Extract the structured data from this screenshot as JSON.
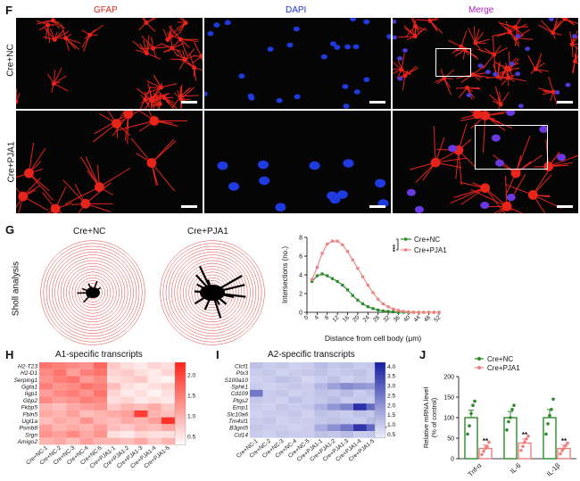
{
  "panelF": {
    "letter": "F",
    "columns": [
      "GFAP",
      "DAPI",
      "Merge"
    ],
    "column_colors": [
      "#e0251c",
      "#1d2fd1",
      "#b21fb7"
    ],
    "rows": [
      "Cre+NC",
      "Cre+PJA1"
    ]
  },
  "panelG": {
    "letter": "G",
    "side_label": "Sholl analysis",
    "cell_titles": [
      "Cre+NC",
      "Cre+PJA1"
    ]
  },
  "panelH": {
    "letter": "H",
    "title": "A1-specific transcripts"
  },
  "panelI": {
    "letter": "I",
    "title": "A2-specific transcripts"
  },
  "panelJ": {
    "letter": "J"
  },
  "chart_data": [
    {
      "type": "line",
      "panel": "G",
      "xlabel": "Distance from cell body (μm)",
      "ylabel": "Intersections (no.)",
      "x": [
        0,
        4,
        8,
        12,
        16,
        20,
        24,
        28,
        32,
        36,
        40,
        44,
        48,
        52
      ],
      "ylim": [
        0,
        8
      ],
      "yticks": [
        0,
        2,
        4,
        6,
        8
      ],
      "series": [
        {
          "name": "Cre+NC",
          "color": "#2c8a2c",
          "x": [
            2,
            4,
            6,
            8,
            10,
            12,
            14,
            16,
            18,
            20,
            22,
            24,
            26,
            28,
            30,
            32,
            34,
            36,
            38,
            40,
            42,
            44,
            46,
            48,
            50,
            52
          ],
          "values": [
            3.3,
            3.9,
            4.1,
            3.9,
            3.6,
            3.3,
            2.9,
            2.4,
            1.8,
            1.3,
            0.9,
            0.6,
            0.4,
            0.25,
            0.15,
            0.1,
            0.05,
            0.02,
            0,
            0,
            0,
            0,
            0,
            0,
            0,
            0
          ]
        },
        {
          "name": "Cre+PJA1",
          "color": "#f08080",
          "x": [
            2,
            4,
            6,
            8,
            10,
            12,
            14,
            16,
            18,
            20,
            22,
            24,
            26,
            28,
            30,
            32,
            34,
            36,
            38,
            40,
            42,
            44,
            46,
            48,
            50,
            52
          ],
          "values": [
            3.5,
            4.8,
            6.3,
            7.3,
            7.6,
            7.6,
            7.2,
            6.5,
            5.6,
            4.7,
            3.8,
            2.9,
            2.1,
            1.4,
            0.9,
            0.6,
            0.35,
            0.2,
            0.1,
            0.05,
            0.02,
            0,
            0,
            0,
            0,
            0
          ]
        }
      ],
      "significance": "***",
      "legend": "top-right"
    },
    {
      "type": "heatmap",
      "panel": "H",
      "rows": [
        "H2-T23",
        "H2-D1",
        "Serping1",
        "Ggta1",
        "Iigp1",
        "Gbp2",
        "Fkbp5",
        "Fbln5",
        "Ugt1a",
        "Psmb8",
        "Srgn",
        "Amigo2"
      ],
      "columns": [
        "Cre+NC-1",
        "Cre+NC-2",
        "Cre+NC-3",
        "Cre+NC-4",
        "Cre+NC-5",
        "Cre+PJA1-1",
        "Cre+PJA1-2",
        "Cre+PJA1-3",
        "Cre+PJA1-4",
        "Cre+PJA1-5"
      ],
      "row_significance": [
        "***",
        "**",
        "*",
        "*",
        "*",
        "*",
        "",
        "",
        "",
        "",
        "*",
        ""
      ],
      "colorbar_ticks": [
        "0.5",
        "1.0",
        "1.5",
        "2.0"
      ],
      "vmin": 0.3,
      "vmax": 2.3,
      "values": [
        [
          1.6,
          1.5,
          1.4,
          1.3,
          1.7,
          0.8,
          0.6,
          0.5,
          0.7,
          0.6
        ],
        [
          1.4,
          1.6,
          1.2,
          1.5,
          1.6,
          0.7,
          0.8,
          0.6,
          0.5,
          0.7
        ],
        [
          1.3,
          1.5,
          1.6,
          1.2,
          1.4,
          0.6,
          0.7,
          0.8,
          0.5,
          0.4
        ],
        [
          1.5,
          1.3,
          1.4,
          1.6,
          1.5,
          0.9,
          0.6,
          0.5,
          0.6,
          0.7
        ],
        [
          1.2,
          1.4,
          1.5,
          1.3,
          1.6,
          0.7,
          0.5,
          0.6,
          0.4,
          0.6
        ],
        [
          1.4,
          1.2,
          1.3,
          1.5,
          1.4,
          0.6,
          0.7,
          0.5,
          0.6,
          0.5
        ],
        [
          1.0,
          0.9,
          1.1,
          1.2,
          1.3,
          0.8,
          1.0,
          0.9,
          1.1,
          0.8
        ],
        [
          1.1,
          1.0,
          1.2,
          0.9,
          1.0,
          1.1,
          1.2,
          2.1,
          1.0,
          0.9
        ],
        [
          0.9,
          1.1,
          1.0,
          1.3,
          1.0,
          0.9,
          1.1,
          1.0,
          1.2,
          2.2
        ],
        [
          1.2,
          1.0,
          1.1,
          1.0,
          1.2,
          0.9,
          0.8,
          1.0,
          0.9,
          1.1
        ],
        [
          1.3,
          1.2,
          1.4,
          1.1,
          1.3,
          0.6,
          0.5,
          0.7,
          0.6,
          0.6
        ],
        [
          1.0,
          1.1,
          0.9,
          1.2,
          1.0,
          1.0,
          0.9,
          1.1,
          0.8,
          1.0
        ]
      ]
    },
    {
      "type": "heatmap",
      "panel": "I",
      "rows": [
        "Clcf1",
        "Ptx3",
        "S100a10",
        "Sphk1",
        "Cd109",
        "Ptgs2",
        "Emp1",
        "Slc10a6",
        "Tm4sf1",
        "B3gnt5",
        "Cd14"
      ],
      "columns": [
        "Cre+NC-1",
        "Cre+NC-2",
        "Cre+NC-3",
        "Cre+NC-4",
        "Cre+NC-5",
        "Cre+PJA1-1",
        "Cre+PJA1-2",
        "Cre+PJA1-3",
        "Cre+PJA1-4",
        "Cre+PJA1-5"
      ],
      "row_significance": [
        "",
        "",
        "",
        "*",
        "",
        "",
        "*",
        "",
        "",
        "**",
        ""
      ],
      "colorbar_ticks": [
        "0.5",
        "1.0",
        "1.5",
        "2.0",
        "2.5",
        "3.0",
        "3.5",
        "4.0"
      ],
      "vmin": 0.3,
      "vmax": 4.2,
      "values": [
        [
          1.2,
          1.0,
          1.1,
          0.9,
          1.0,
          1.3,
          1.1,
          1.2,
          1.0,
          1.1
        ],
        [
          1.0,
          1.1,
          0.9,
          1.0,
          1.1,
          1.2,
          1.0,
          1.1,
          1.2,
          1.0
        ],
        [
          0.9,
          1.0,
          1.2,
          1.1,
          0.8,
          1.0,
          1.2,
          0.9,
          1.1,
          1.0
        ],
        [
          1.0,
          0.9,
          1.0,
          1.1,
          1.0,
          1.4,
          1.8,
          2.2,
          2.0,
          1.9
        ],
        [
          2.6,
          1.0,
          1.1,
          0.9,
          1.0,
          1.2,
          1.1,
          1.3,
          1.0,
          1.2
        ],
        [
          1.1,
          1.0,
          0.9,
          1.2,
          1.0,
          1.1,
          1.3,
          1.0,
          1.1,
          1.0
        ],
        [
          1.0,
          0.9,
          1.1,
          1.0,
          1.1,
          1.5,
          2.0,
          2.4,
          3.9,
          2.8
        ],
        [
          0.9,
          1.0,
          1.0,
          1.1,
          0.9,
          1.2,
          1.1,
          1.0,
          1.2,
          1.1
        ],
        [
          1.0,
          1.1,
          0.9,
          1.0,
          1.0,
          1.1,
          1.2,
          1.1,
          1.0,
          1.3
        ],
        [
          1.1,
          1.0,
          1.0,
          0.9,
          1.0,
          1.6,
          2.1,
          2.6,
          3.8,
          2.9
        ],
        [
          1.0,
          0.9,
          1.1,
          1.0,
          1.0,
          1.2,
          1.1,
          1.3,
          1.0,
          1.1
        ]
      ]
    },
    {
      "type": "bar",
      "panel": "J",
      "ylabel": "Relative mRNA level\n(% of control)",
      "categories": [
        "Tnf-α",
        "IL-6",
        "IL-1β"
      ],
      "ylim": [
        0,
        200
      ],
      "yticks": [
        0,
        50,
        100,
        150,
        200
      ],
      "series": [
        {
          "name": "Cre+NC",
          "color": "#2c8a2c",
          "values": [
            100,
            100,
            100
          ],
          "errors": [
            18,
            15,
            20
          ],
          "points": [
            [
              60,
              80,
              110,
              130,
              140
            ],
            [
              70,
              90,
              100,
              120,
              130
            ],
            [
              60,
              85,
              105,
              120,
              145
            ]
          ]
        },
        {
          "name": "Cre+PJA1",
          "color": "#f08080",
          "values": [
            25,
            38,
            25
          ],
          "errors": [
            8,
            10,
            8
          ],
          "points": [
            [
              10,
              18,
              25,
              30,
              40
            ],
            [
              20,
              30,
              40,
              48,
              55
            ],
            [
              12,
              20,
              25,
              32,
              38
            ]
          ]
        }
      ],
      "significance": [
        "**",
        "**",
        "**"
      ],
      "legend": "top"
    }
  ]
}
